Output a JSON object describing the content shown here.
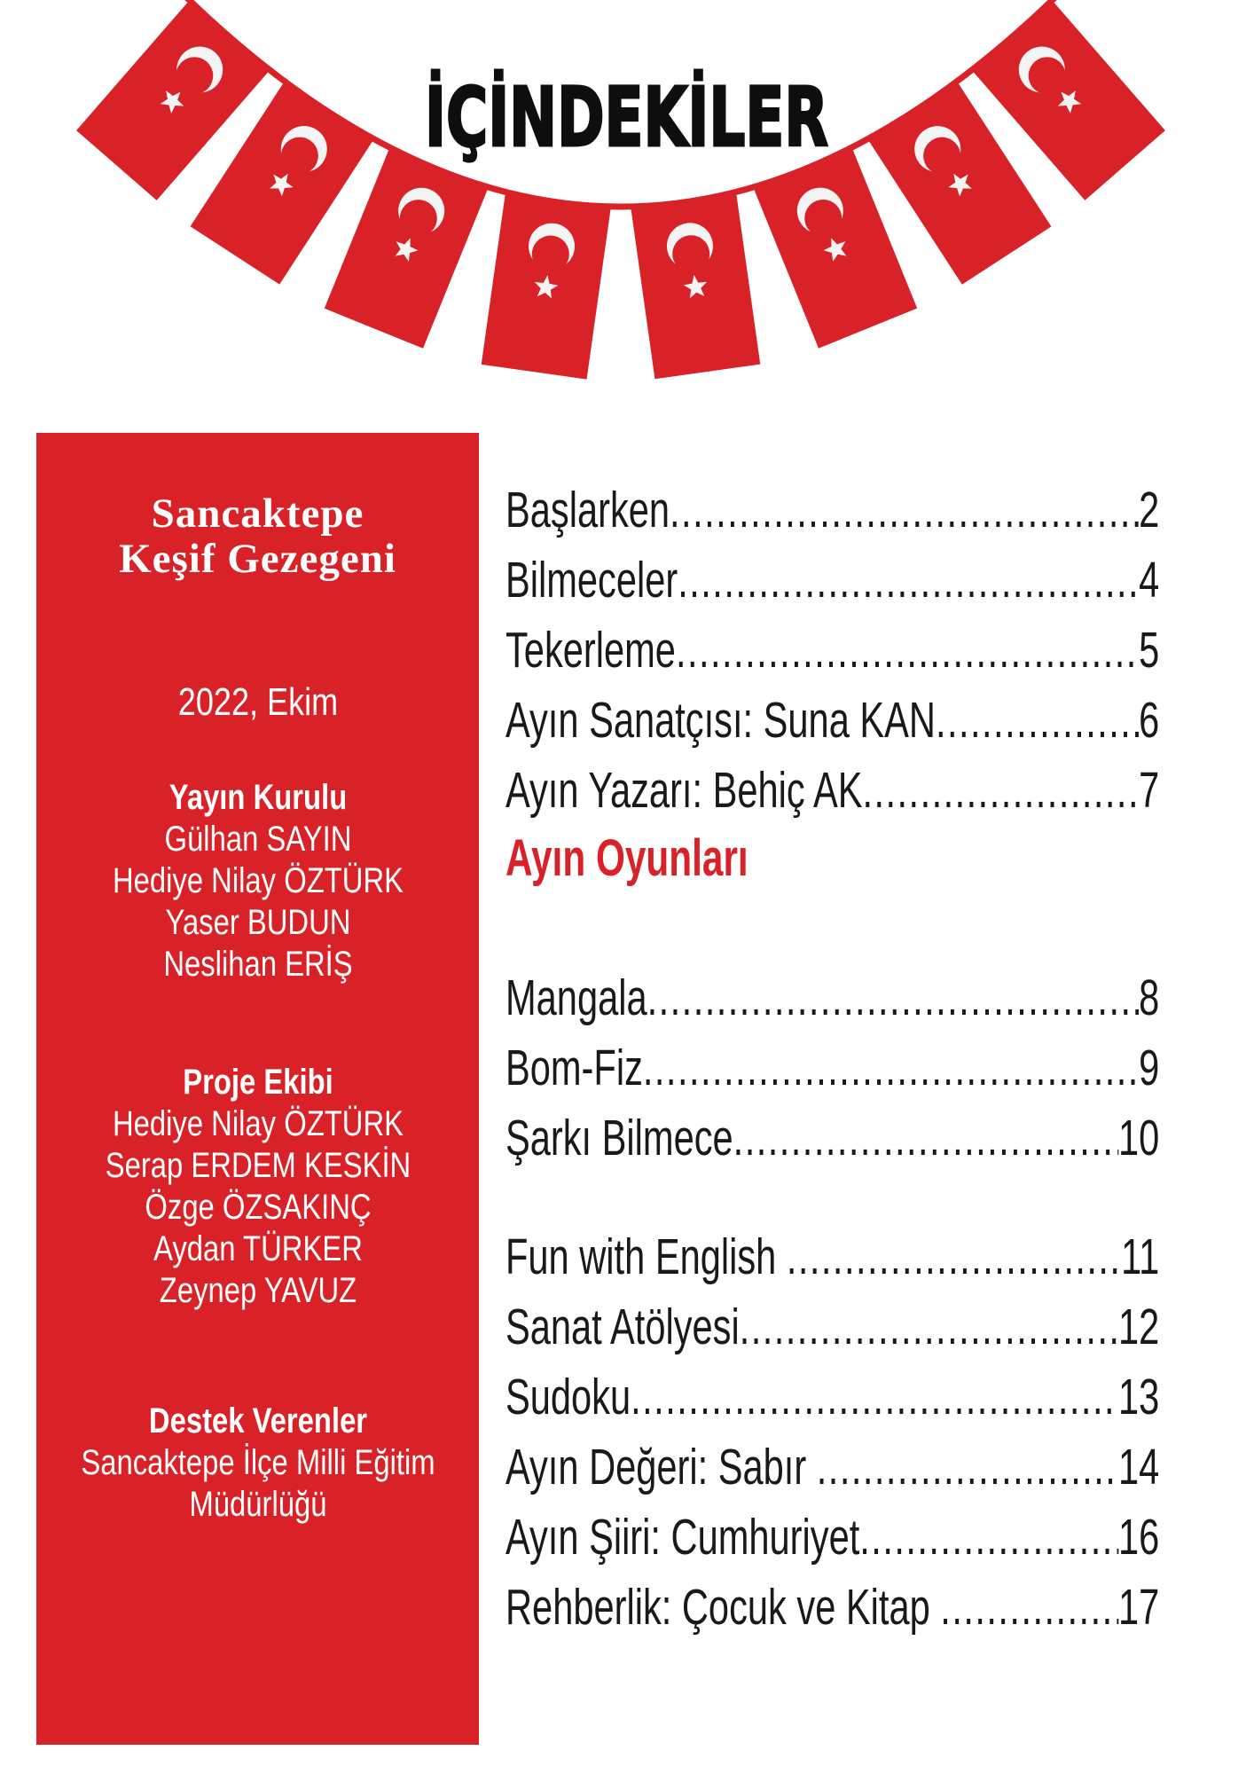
{
  "colors": {
    "red": "#d92228",
    "title_black": "#0e0e0e",
    "text_black": "#191919",
    "white": "#ffffff",
    "flag_white": "#f4f4f4"
  },
  "banner": {
    "title": "İÇİNDEKİLER",
    "flag_icon": "turkish-flag",
    "flag_count": 8
  },
  "sidebar": {
    "title_line1": "Sancaktepe",
    "title_line2": "Keşif Gezegeni",
    "date": "2022, Ekim",
    "sections": [
      {
        "heading": "Yayın Kurulu",
        "members": [
          "Gülhan SAYIN",
          "Hediye Nilay ÖZTÜRK",
          "Yaser BUDUN",
          "Neslihan ERİŞ"
        ]
      },
      {
        "heading": "Proje Ekibi",
        "members": [
          "Hediye Nilay ÖZTÜRK",
          "Serap ERDEM KESKİN",
          "Özge ÖZSAKINÇ",
          "Aydan TÜRKER",
          "Zeynep YAVUZ"
        ]
      },
      {
        "heading": "Destek Verenler",
        "members": [
          "Sancaktepe İlçe Milli Eğitim",
          "Müdürlüğü"
        ]
      }
    ]
  },
  "toc": {
    "heading": "Ayın Oyunları",
    "groups": [
      {
        "id": "g1",
        "items": [
          {
            "label": "Başlarken",
            "page": "2"
          },
          {
            "label": "Bilmeceler",
            "page": "4"
          },
          {
            "label": "Tekerleme",
            "page": "5"
          },
          {
            "label": "Ayın Sanatçısı: Suna KAN",
            "page": "6"
          },
          {
            "label": "Ayın Yazarı: Behiç AK",
            "page": "7"
          }
        ]
      },
      {
        "id": "g2",
        "items": [
          {
            "label": "Mangala",
            "page": "8"
          },
          {
            "label": "Bom-Fiz",
            "page": "9"
          },
          {
            "label": "Şarkı Bilmece",
            "page": "10"
          }
        ]
      },
      {
        "id": "g3",
        "items": [
          {
            "label": "Fun with English ",
            "page": "11"
          },
          {
            "label": "Sanat Atölyesi",
            "page": "12"
          },
          {
            "label": "Sudoku",
            "page": "13"
          },
          {
            "label": "Ayın Değeri: Sabır ",
            "page": "14"
          },
          {
            "label": "Ayın Şiiri: Cumhuriyet",
            "page": "16"
          },
          {
            "label": "Rehberlik: Çocuk ve Kitap ",
            "page": "17"
          }
        ]
      }
    ]
  }
}
